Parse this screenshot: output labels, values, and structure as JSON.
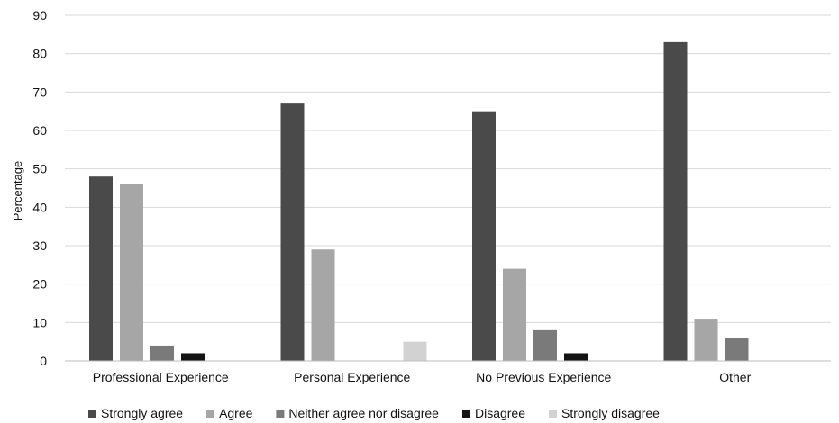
{
  "chart_data": {
    "type": "bar",
    "categories": [
      "Professional Experience",
      "Personal Experience",
      "No Previous Experience",
      "Other"
    ],
    "series": [
      {
        "name": "Strongly agree",
        "color": "#4a4a4a",
        "values": [
          48,
          67,
          65,
          83
        ]
      },
      {
        "name": "Agree",
        "color": "#a6a6a6",
        "values": [
          46,
          29,
          24,
          11
        ]
      },
      {
        "name": "Neither agree nor disagree",
        "color": "#7a7a7a",
        "values": [
          4,
          0,
          8,
          6
        ]
      },
      {
        "name": "Disagree",
        "color": "#141414",
        "values": [
          2,
          0,
          2,
          0
        ]
      },
      {
        "name": "Strongly disagree",
        "color": "#d2d2d2",
        "values": [
          0,
          5,
          0,
          0
        ]
      }
    ],
    "title": "",
    "xlabel": "",
    "ylabel": "Percentage",
    "ylim": [
      0,
      90
    ],
    "yticks": [
      0,
      10,
      20,
      30,
      40,
      50,
      60,
      70,
      80,
      90
    ],
    "grid": true,
    "legend_position": "bottom"
  }
}
